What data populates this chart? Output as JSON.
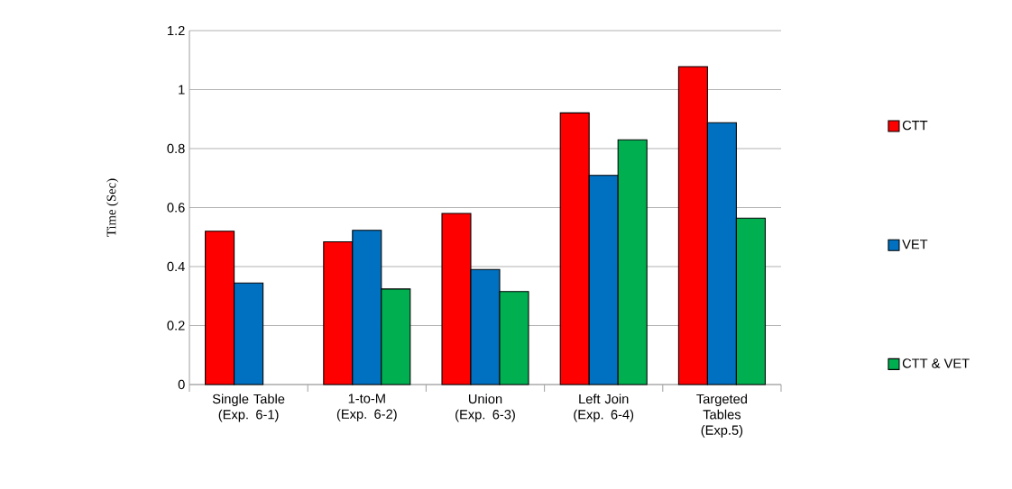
{
  "chart_data": {
    "type": "bar",
    "ylabel": "Time (Sec)",
    "categories": [
      "Single Table (Exp. 6-1)",
      "1-to-M (Exp. 6-2)",
      "Union (Exp. 6-3)",
      "Left Join (Exp. 6-4)",
      "Targeted Tables (Exp.5)"
    ],
    "series": [
      {
        "name": "CTT",
        "color": "#ff0000",
        "values": [
          0.52,
          0.484,
          0.58,
          0.921,
          1.078
        ]
      },
      {
        "name": "VET",
        "color": "#0070c0",
        "values": [
          0.344,
          0.523,
          0.39,
          0.709,
          0.888
        ]
      },
      {
        "name": "CTT & VET",
        "color": "#00b050",
        "values": [
          null,
          0.324,
          0.315,
          0.83,
          0.564
        ]
      }
    ],
    "ylim": [
      0,
      1.2
    ],
    "yticks": [
      0,
      0.2,
      0.4,
      0.6,
      0.8,
      1,
      1.2
    ],
    "grid": "y",
    "legend": "right"
  }
}
